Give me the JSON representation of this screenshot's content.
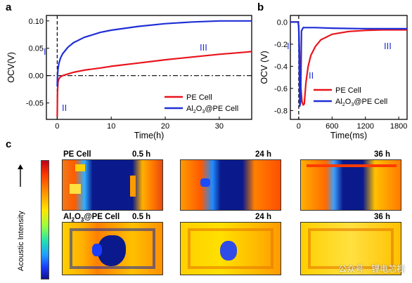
{
  "panels": {
    "a": {
      "letter": "a"
    },
    "b": {
      "letter": "b"
    },
    "c": {
      "letter": "c"
    }
  },
  "chart_data": [
    {
      "type": "line",
      "panel": "a",
      "xlabel": "Time(h)",
      "ylabel": "OCV(V)",
      "xlim": [
        -2,
        36
      ],
      "ylim": [
        -0.08,
        0.11
      ],
      "xticks": [
        0,
        10,
        20,
        30
      ],
      "yticks": [
        -0.05,
        0.0,
        0.05,
        0.1
      ],
      "ytick_labels": [
        "-0.05",
        "0.00",
        "0.05",
        "0.10"
      ],
      "region_labels": [
        "I",
        "II",
        "III"
      ],
      "reference_line_y": 0.0,
      "legend_position": "lower-right",
      "series": [
        {
          "name": "PE Cell",
          "color": "#e8141c",
          "x": [
            0,
            0.05,
            0.15,
            0.3,
            0.6,
            1,
            2,
            3,
            5,
            8,
            10,
            15,
            20,
            25,
            30,
            35,
            36
          ],
          "y": [
            -0.075,
            -0.03,
            -0.012,
            -0.006,
            -0.002,
            0.0,
            0.003,
            0.006,
            0.01,
            0.014,
            0.017,
            0.023,
            0.029,
            0.034,
            0.039,
            0.043,
            0.044
          ]
        },
        {
          "name": "Al2O3@PE Cell",
          "color": "#1f2fd6",
          "x": [
            0,
            0.05,
            0.15,
            0.3,
            0.6,
            1,
            2,
            3,
            5,
            8,
            10,
            15,
            20,
            25,
            30,
            35,
            36
          ],
          "y": [
            -0.02,
            0.0,
            0.012,
            0.022,
            0.032,
            0.04,
            0.052,
            0.06,
            0.07,
            0.079,
            0.083,
            0.09,
            0.095,
            0.098,
            0.1,
            0.1,
            0.1
          ]
        }
      ]
    },
    {
      "type": "line",
      "panel": "b",
      "xlabel": "Time(ms)",
      "ylabel": "OCV (V)",
      "xlim": [
        -150,
        1950
      ],
      "ylim": [
        -0.88,
        0.06
      ],
      "xticks": [
        0,
        600,
        1200,
        1800
      ],
      "yticks": [
        0.0,
        -0.2,
        -0.4,
        -0.6,
        -0.8
      ],
      "ytick_labels": [
        "0.0",
        "-0.2",
        "-0.4",
        "-0.6",
        "-0.8"
      ],
      "region_labels": [
        "I",
        "II",
        "III"
      ],
      "legend_position": "lower-right",
      "series": [
        {
          "name": "PE Cell",
          "color": "#e8141c",
          "x": [
            -150,
            -10,
            0,
            20,
            40,
            60,
            80,
            100,
            130,
            170,
            220,
            300,
            400,
            600,
            900,
            1200,
            1500,
            1950
          ],
          "y": [
            0.0,
            0.0,
            -0.05,
            -0.35,
            -0.6,
            -0.72,
            -0.75,
            -0.74,
            -0.55,
            -0.4,
            -0.3,
            -0.22,
            -0.16,
            -0.11,
            -0.085,
            -0.075,
            -0.07,
            -0.07
          ]
        },
        {
          "name": "Al2O3@PE Cell",
          "color": "#1f2fd6",
          "x": [
            -150,
            -10,
            0,
            10,
            20,
            35,
            50,
            80,
            150,
            300,
            600,
            1200,
            1950
          ],
          "y": [
            0.0,
            0.0,
            -0.04,
            -0.35,
            -0.76,
            -0.72,
            -0.08,
            -0.05,
            -0.05,
            -0.05,
            -0.055,
            -0.06,
            -0.06
          ]
        }
      ]
    }
  ],
  "heatmaps": {
    "colorbar_label": "Acoustic Intensity",
    "row1_label": "PE Cell",
    "row2_label_prefix": "Al",
    "row2_sub1": "2",
    "row2_mid": "O",
    "row2_sub2": "3",
    "row2_suffix": "@PE Cell",
    "times": [
      "0.5 h",
      "24 h",
      "36 h"
    ]
  },
  "watermark": "公众号 · 锂电芯视"
}
